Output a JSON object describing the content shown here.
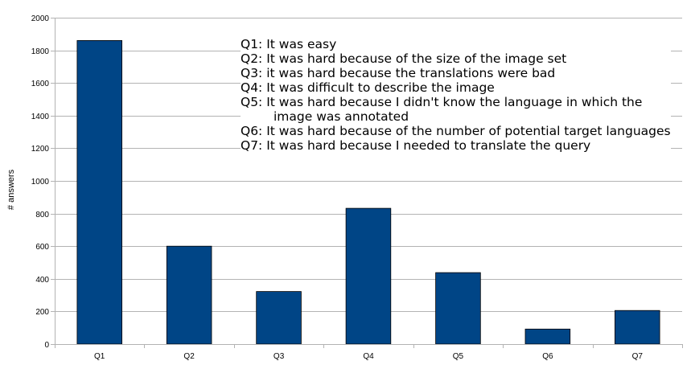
{
  "chart_data": {
    "type": "bar",
    "categories": [
      "Q1",
      "Q2",
      "Q3",
      "Q4",
      "Q5",
      "Q6",
      "Q7"
    ],
    "series": [
      {
        "values": [
          1860,
          600,
          322,
          832,
          438,
          92,
          206
        ]
      }
    ],
    "ylabel": "# answers",
    "xlabel": "",
    "ylim": [
      0,
      2000
    ],
    "yticks": [
      0,
      200,
      400,
      600,
      800,
      1000,
      1200,
      1400,
      1600,
      1800,
      2000
    ],
    "grid": true,
    "bar_color": "#004586",
    "legend_text": [
      "Q1: It was easy",
      "Q2: It was hard because of the size of the image set",
      "Q3: it was hard because the translations were bad",
      "Q4: It was difficult to describe the image",
      "Q5: It was hard because I didn't know the language in which the",
      "image was annotated",
      "Q6: It was hard because of the number of potential target languages",
      "Q7: It was hard because I needed to translate the query"
    ]
  }
}
